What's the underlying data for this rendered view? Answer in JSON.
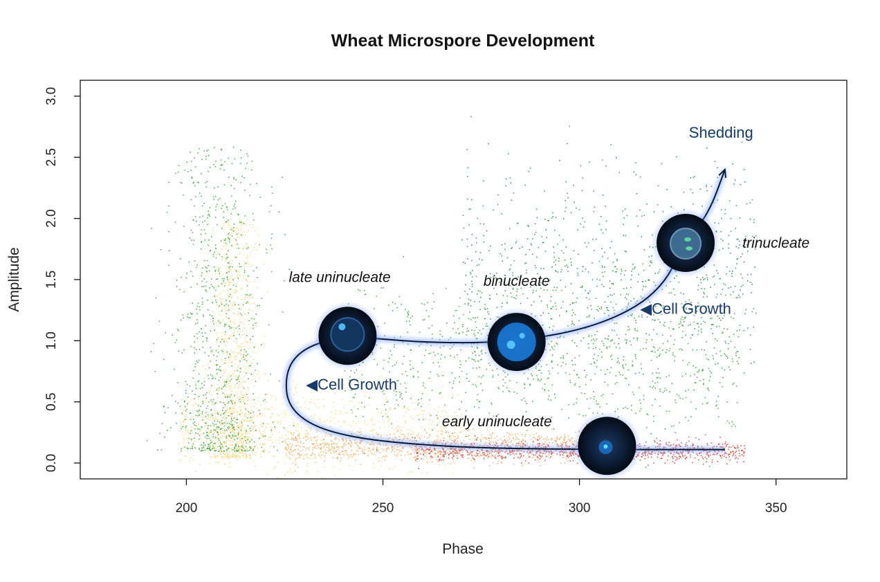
{
  "chart_data": {
    "type": "scatter",
    "title": "Wheat Microspore Development",
    "xlabel": "Phase",
    "ylabel": "Amplitude",
    "xlim": [
      173,
      368
    ],
    "ylim": [
      -0.13,
      3.13
    ],
    "xticks": [
      200,
      250,
      300,
      350
    ],
    "yticks": [
      0.0,
      0.5,
      1.0,
      1.5,
      2.0,
      2.5,
      3.0
    ],
    "ytick_labels": [
      "0.0",
      "0.5",
      "1.0",
      "1.5",
      "2.0",
      "2.5",
      "3.0"
    ],
    "grid": false,
    "colors": {
      "red": "#d7301f",
      "orange": "#f4a460",
      "yellow": "#f7d67a",
      "lightgreen": "#9ccc50",
      "green": "#2ca02c",
      "darkgreen": "#1a8a3a",
      "path": "#0b1a33",
      "glow": "#7fa6ff",
      "cell_dark": "#0a1a2e",
      "cell_blue": "#1b7fe0"
    },
    "clusters": [
      {
        "name_hint": "early",
        "color": "red",
        "x_range": [
          258,
          342
        ],
        "y_center": 0.1,
        "y_spread": 0.04
      },
      {
        "name_hint": "early-orange",
        "color": "orange",
        "x_range": [
          225,
          300
        ],
        "y_center": 0.14,
        "y_spread": 0.06
      },
      {
        "name_hint": "yellow-spike",
        "color": "yellow",
        "x_center": 212,
        "x_spread": 3,
        "y_range": [
          0.05,
          2.0
        ]
      },
      {
        "name_hint": "yellow-band",
        "color": "yellow",
        "x_range": [
          198,
          270
        ],
        "y_center": 0.25,
        "y_spread": 0.18
      },
      {
        "name_hint": "green-spike",
        "color": "green",
        "x_center": 208,
        "x_spread": 6,
        "y_range": [
          0.1,
          2.6
        ]
      },
      {
        "name_hint": "green-band",
        "color": "green",
        "x_range": [
          240,
          340
        ],
        "y_center": 0.85,
        "y_spread": 0.3
      },
      {
        "name_hint": "green-upper",
        "color": "darkgreen",
        "x_range": [
          270,
          345
        ],
        "y_center": 1.5,
        "y_spread": 0.45
      }
    ],
    "trajectory": [
      [
        337,
        0.11
      ],
      [
        300,
        0.11
      ],
      [
        265,
        0.13
      ],
      [
        238,
        0.22
      ],
      [
        226,
        0.42
      ],
      [
        225,
        0.75
      ],
      [
        230,
        0.95
      ],
      [
        241,
        1.04
      ],
      [
        262,
        0.98
      ],
      [
        284,
        0.99
      ],
      [
        305,
        1.12
      ],
      [
        320,
        1.38
      ],
      [
        327,
        1.8
      ],
      [
        333,
        2.05
      ],
      [
        337,
        2.4
      ]
    ],
    "cells": [
      {
        "x": 307,
        "y": 0.14,
        "stage": "early uninucleate"
      },
      {
        "x": 241,
        "y": 1.04,
        "stage": "late uninucleate"
      },
      {
        "x": 284,
        "y": 0.99,
        "stage": "binucleate"
      },
      {
        "x": 327,
        "y": 1.8,
        "stage": "trinucleate"
      }
    ],
    "annotations": [
      {
        "text": "early uninucleate",
        "x": 279,
        "y": 0.3,
        "style": "italic"
      },
      {
        "text": "late uninucleate",
        "x": 239,
        "y": 1.48,
        "style": "italic"
      },
      {
        "text": "binucleate",
        "x": 284,
        "y": 1.45,
        "style": "italic"
      },
      {
        "text": "trinucleate",
        "x": 350,
        "y": 1.76,
        "style": "italic"
      },
      {
        "text": "◀Cell Growth",
        "x": 242,
        "y": 0.6,
        "style": "blue"
      },
      {
        "text": "◀Cell Growth",
        "x": 327,
        "y": 1.22,
        "style": "blue"
      },
      {
        "text": "Shedding",
        "x": 336,
        "y": 2.66,
        "style": "blue"
      }
    ]
  }
}
